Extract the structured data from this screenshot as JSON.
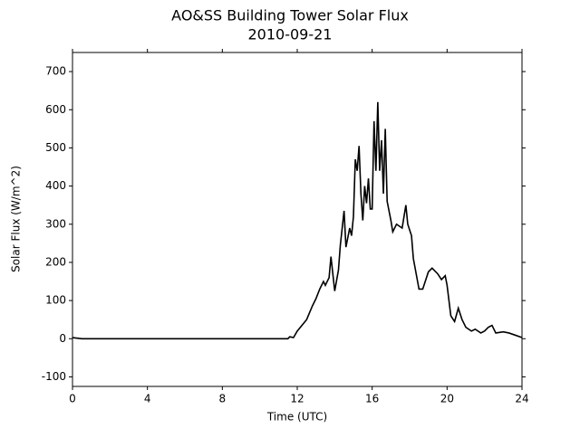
{
  "chart_data": {
    "type": "line",
    "title": "AO&SS Building Tower Solar Flux",
    "subtitle": "2010-09-21",
    "x_label": "Time (UTC)",
    "y_label": "Solar Flux (W/m^2)",
    "xlim": [
      0,
      24
    ],
    "xticks": [
      0,
      4,
      8,
      12,
      16,
      20,
      24
    ],
    "ylim": [
      -125,
      750
    ],
    "yticks": [
      -100,
      0,
      100,
      200,
      300,
      400,
      500,
      600,
      700
    ],
    "series": [
      {
        "color": "#000000",
        "x": [
          0,
          0.5,
          11.5,
          11.6,
          11.8,
          12,
          12.5,
          12.8,
          13,
          13.2,
          13.4,
          13.5,
          13.7,
          13.8,
          14,
          14.2,
          14.3,
          14.5,
          14.6,
          14.8,
          14.9,
          15.0,
          15.1,
          15.2,
          15.3,
          15.4,
          15.5,
          15.6,
          15.7,
          15.8,
          15.9,
          16.0,
          16.1,
          16.2,
          16.3,
          16.4,
          16.5,
          16.6,
          16.7,
          16.8,
          17.0,
          17.1,
          17.3,
          17.6,
          17.8,
          17.9,
          18.1,
          18.2,
          18.5,
          18.7,
          19.0,
          19.2,
          19.5,
          19.7,
          19.9,
          20.0,
          20.2,
          20.4,
          20.6,
          20.8,
          21.0,
          21.3,
          21.5,
          21.8,
          22.0,
          22.2,
          22.4,
          22.6,
          23.0,
          23.3,
          23.6,
          24
        ],
        "values": [
          3,
          0,
          0,
          5,
          3,
          20,
          50,
          85,
          105,
          130,
          150,
          140,
          160,
          215,
          125,
          180,
          245,
          335,
          240,
          290,
          270,
          320,
          470,
          440,
          505,
          380,
          310,
          400,
          355,
          420,
          340,
          340,
          570,
          440,
          620,
          440,
          520,
          380,
          550,
          360,
          310,
          280,
          300,
          290,
          350,
          300,
          270,
          210,
          130,
          130,
          175,
          185,
          170,
          155,
          165,
          140,
          60,
          45,
          80,
          50,
          30,
          20,
          25,
          15,
          20,
          30,
          35,
          15,
          18,
          15,
          10,
          3
        ]
      }
    ]
  }
}
